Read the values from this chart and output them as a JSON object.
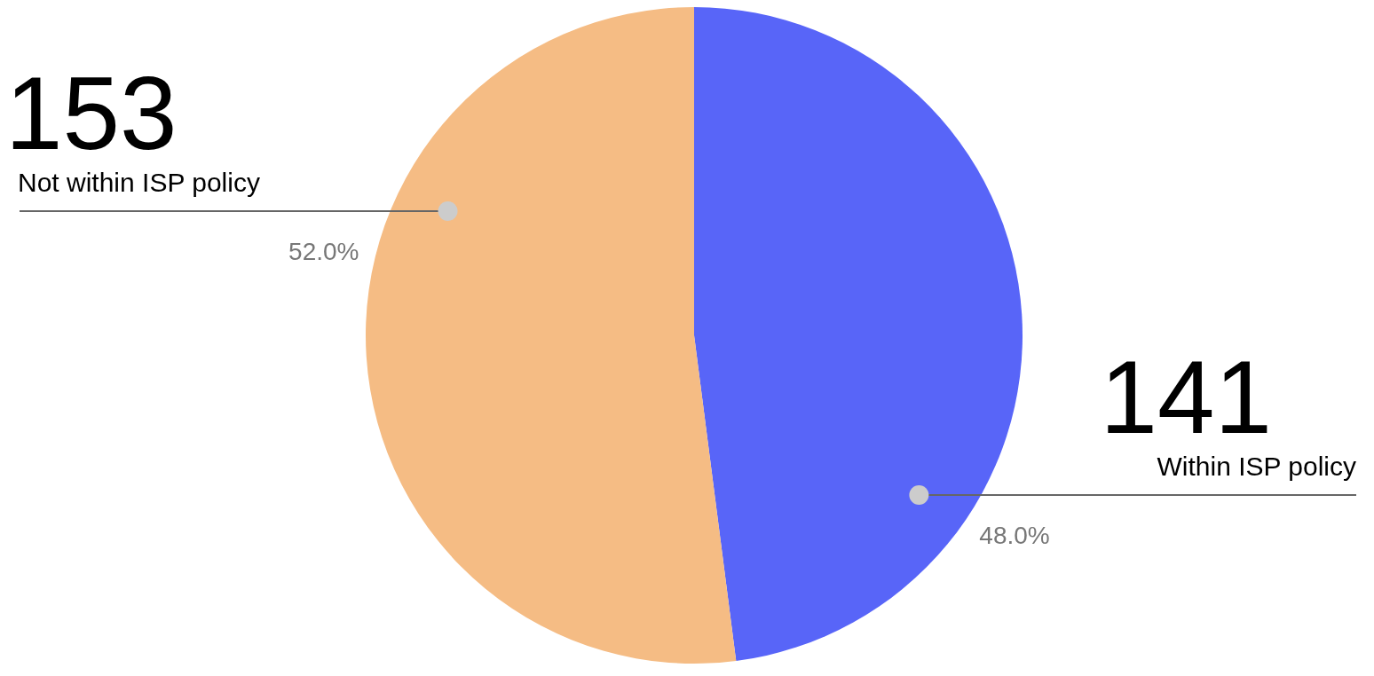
{
  "chart_data": {
    "type": "pie",
    "categories": [
      "Within ISP policy",
      "Not within ISP policy"
    ],
    "values": [
      141,
      153
    ],
    "colors": [
      "#5865f8",
      "#f5bc84"
    ],
    "value_labels": [
      "141",
      "153"
    ],
    "annotations": [
      "48.0%",
      "52.0%"
    ]
  }
}
